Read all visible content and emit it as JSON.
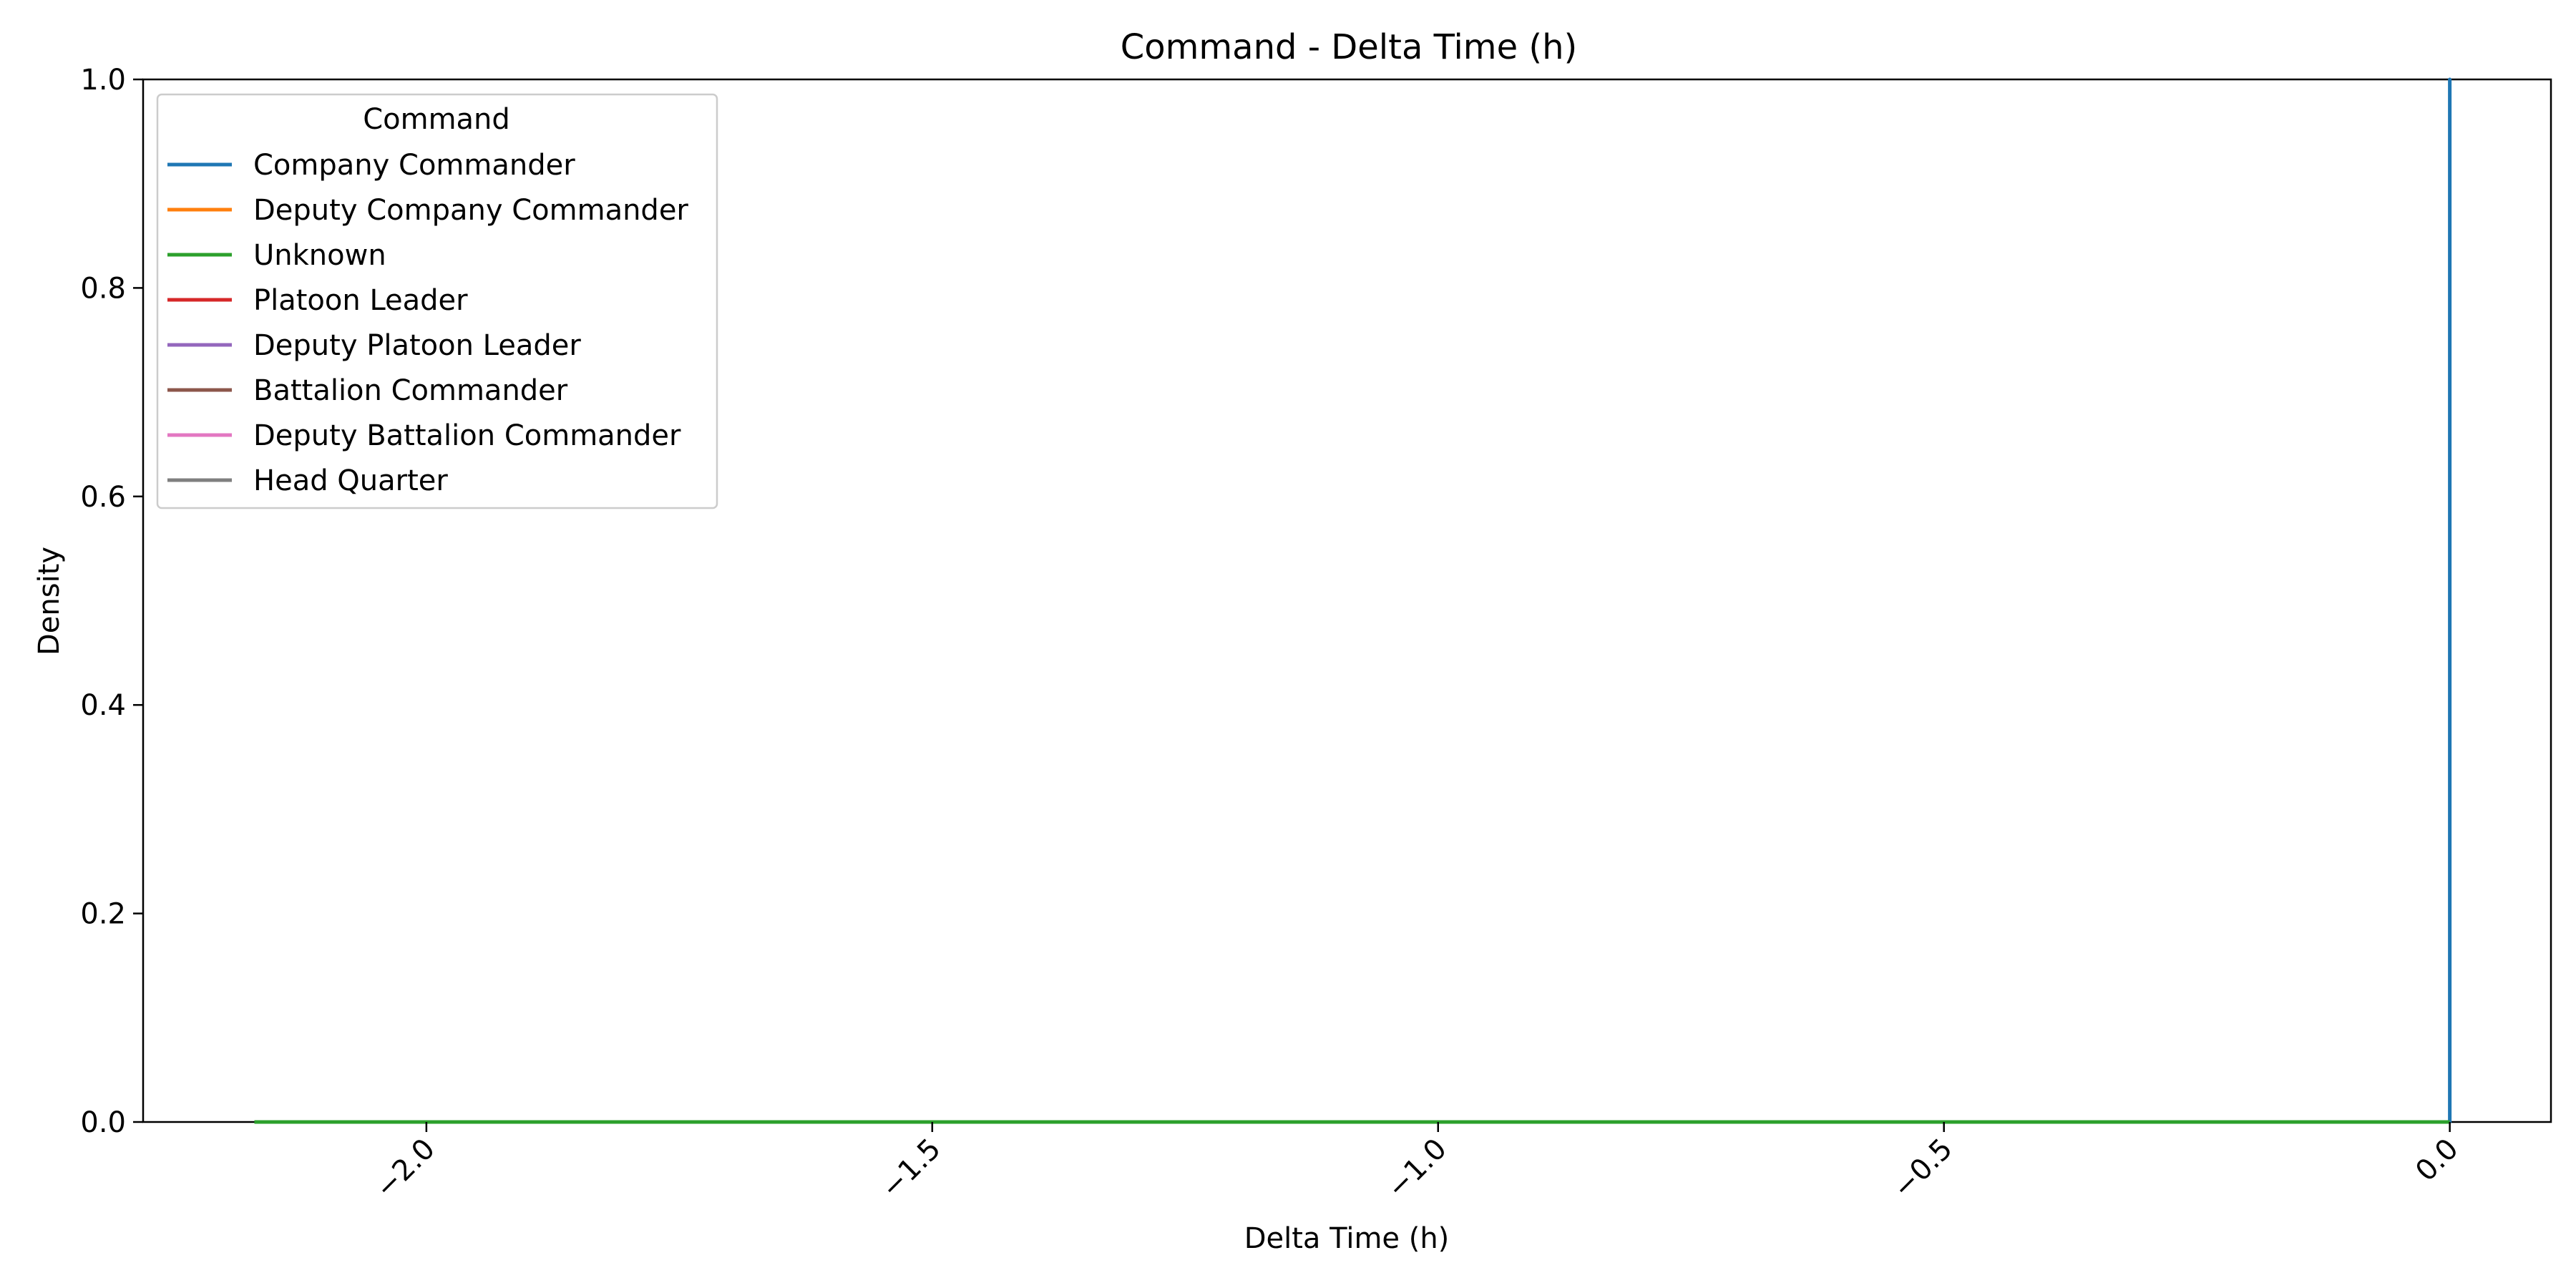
{
  "chart_data": {
    "type": "line",
    "title": "Command - Delta Time (h)",
    "xlabel": "Delta Time (h)",
    "ylabel": "Density",
    "xlim": [
      -2.28,
      0.1
    ],
    "ylim": [
      0.0,
      1.0
    ],
    "xticks": [
      -2.0,
      -1.5,
      -1.0,
      -0.5,
      0.0
    ],
    "xtick_labels": [
      "−2.0",
      "−1.5",
      "−1.0",
      "−0.5",
      "0.0"
    ],
    "yticks": [
      0.0,
      0.2,
      0.4,
      0.6,
      0.8,
      1.0
    ],
    "ytick_labels": [
      "0.0",
      "0.2",
      "0.4",
      "0.6",
      "0.8",
      "1.0"
    ],
    "grid": false,
    "legend": {
      "title": "Command",
      "placement": "top-left"
    },
    "series": [
      {
        "name": "Company Commander",
        "color": "#1f77b4",
        "x": [
          -2.17,
          0.0,
          0.0,
          0.0
        ],
        "y": [
          0.0,
          0.0,
          1.0,
          0.0
        ]
      },
      {
        "name": "Deputy Company Commander",
        "color": "#ff7f0e",
        "x": [
          -2.17,
          0.0
        ],
        "y": [
          0.0,
          0.0
        ]
      },
      {
        "name": "Unknown",
        "color": "#2ca02c",
        "x": [
          -2.17,
          0.0
        ],
        "y": [
          0.0,
          0.0
        ]
      },
      {
        "name": "Platoon Leader",
        "color": "#d62728",
        "x": [],
        "y": []
      },
      {
        "name": "Deputy Platoon Leader",
        "color": "#9467bd",
        "x": [],
        "y": []
      },
      {
        "name": "Battalion Commander",
        "color": "#8c564b",
        "x": [],
        "y": []
      },
      {
        "name": "Deputy Battalion Commander",
        "color": "#e377c2",
        "x": [],
        "y": []
      },
      {
        "name": "Head Quarter",
        "color": "#7f7f7f",
        "x": [],
        "y": []
      }
    ]
  }
}
